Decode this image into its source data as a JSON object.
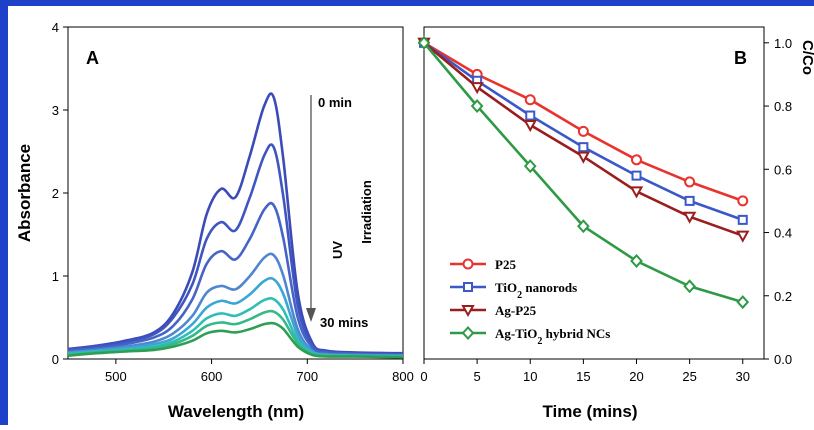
{
  "chart_data": [
    {
      "type": "line",
      "panel_label": "A",
      "xlabel": "Wavelength (nm)",
      "ylabel": "Absorbance",
      "xlim": [
        450,
        800
      ],
      "ylim": [
        0,
        4
      ],
      "x_ticks": [
        "500",
        "600",
        "700",
        "800"
      ],
      "y_ticks": [
        "0",
        "1",
        "2",
        "3",
        "4"
      ],
      "grid": false,
      "annotations": {
        "start": "0 min",
        "end": "30 mins",
        "arrow_label_1": "UV",
        "arrow_label_2": "Irradiation"
      },
      "x": [
        450,
        480,
        510,
        540,
        560,
        580,
        595,
        610,
        625,
        640,
        655,
        665,
        675,
        690,
        705,
        720,
        750,
        800
      ],
      "series": [
        {
          "values": [
            0.12,
            0.16,
            0.22,
            0.32,
            0.55,
            1.05,
            1.75,
            2.05,
            1.95,
            2.45,
            3.05,
            3.15,
            2.4,
            0.8,
            0.2,
            0.1,
            0.08,
            0.07
          ],
          "color": "#3b4bb8"
        },
        {
          "values": [
            0.11,
            0.15,
            0.2,
            0.3,
            0.5,
            0.9,
            1.45,
            1.65,
            1.55,
            1.95,
            2.45,
            2.55,
            1.95,
            0.65,
            0.17,
            0.09,
            0.07,
            0.06
          ],
          "color": "#3f55c0"
        },
        {
          "values": [
            0.1,
            0.13,
            0.18,
            0.26,
            0.4,
            0.72,
            1.15,
            1.3,
            1.2,
            1.45,
            1.8,
            1.85,
            1.45,
            0.5,
            0.14,
            0.08,
            0.06,
            0.05
          ],
          "color": "#4664c8"
        },
        {
          "values": [
            0.08,
            0.11,
            0.15,
            0.21,
            0.31,
            0.52,
            0.8,
            0.88,
            0.84,
            1.0,
            1.22,
            1.25,
            1.0,
            0.36,
            0.1,
            0.06,
            0.05,
            0.04
          ],
          "color": "#4f86d0"
        },
        {
          "values": [
            0.07,
            0.1,
            0.13,
            0.18,
            0.25,
            0.42,
            0.62,
            0.7,
            0.67,
            0.78,
            0.94,
            0.96,
            0.78,
            0.29,
            0.09,
            0.05,
            0.04,
            0.04
          ],
          "color": "#3aa6d6"
        },
        {
          "values": [
            0.06,
            0.09,
            0.11,
            0.15,
            0.21,
            0.34,
            0.49,
            0.55,
            0.52,
            0.6,
            0.71,
            0.72,
            0.59,
            0.23,
            0.07,
            0.05,
            0.04,
            0.03
          ],
          "color": "#2ebeb5"
        },
        {
          "values": [
            0.05,
            0.08,
            0.1,
            0.13,
            0.18,
            0.28,
            0.4,
            0.44,
            0.42,
            0.48,
            0.56,
            0.57,
            0.47,
            0.19,
            0.06,
            0.04,
            0.03,
            0.03
          ],
          "color": "#35b88a"
        },
        {
          "values": [
            0.04,
            0.07,
            0.09,
            0.11,
            0.15,
            0.22,
            0.31,
            0.34,
            0.32,
            0.36,
            0.42,
            0.43,
            0.36,
            0.15,
            0.05,
            0.03,
            0.03,
            0.02
          ],
          "color": "#2f9e55"
        }
      ]
    },
    {
      "type": "line",
      "panel_label": "B",
      "xlabel": "Time (mins)",
      "ylabel": "C/Co",
      "xlim": [
        0,
        32
      ],
      "ylim": [
        0,
        1.05
      ],
      "x_ticks": [
        "0",
        "5",
        "10",
        "15",
        "20",
        "25",
        "30"
      ],
      "y_ticks": [
        "0.0",
        "0.2",
        "0.4",
        "0.6",
        "0.8",
        "1.0"
      ],
      "grid": false,
      "legend_position": "bottom-left",
      "x": [
        0,
        5,
        10,
        15,
        20,
        25,
        30
      ],
      "series": [
        {
          "name": "P25",
          "values": [
            1.0,
            0.9,
            0.82,
            0.72,
            0.63,
            0.56,
            0.5
          ],
          "color": "#e8332f",
          "marker": "circle"
        },
        {
          "name_parts": [
            "TiO",
            "2",
            " nanorods"
          ],
          "values": [
            1.0,
            0.88,
            0.77,
            0.67,
            0.58,
            0.5,
            0.44
          ],
          "color": "#3a58c8",
          "marker": "square"
        },
        {
          "name": "Ag-P25",
          "values": [
            1.0,
            0.86,
            0.74,
            0.64,
            0.53,
            0.45,
            0.39
          ],
          "color": "#9b1d1d",
          "marker": "triangle-down"
        },
        {
          "name_parts": [
            "Ag-TiO",
            "2",
            " hybrid NCs"
          ],
          "values": [
            1.0,
            0.8,
            0.61,
            0.42,
            0.31,
            0.23,
            0.18
          ],
          "color": "#2e9a45",
          "marker": "diamond"
        }
      ]
    }
  ]
}
